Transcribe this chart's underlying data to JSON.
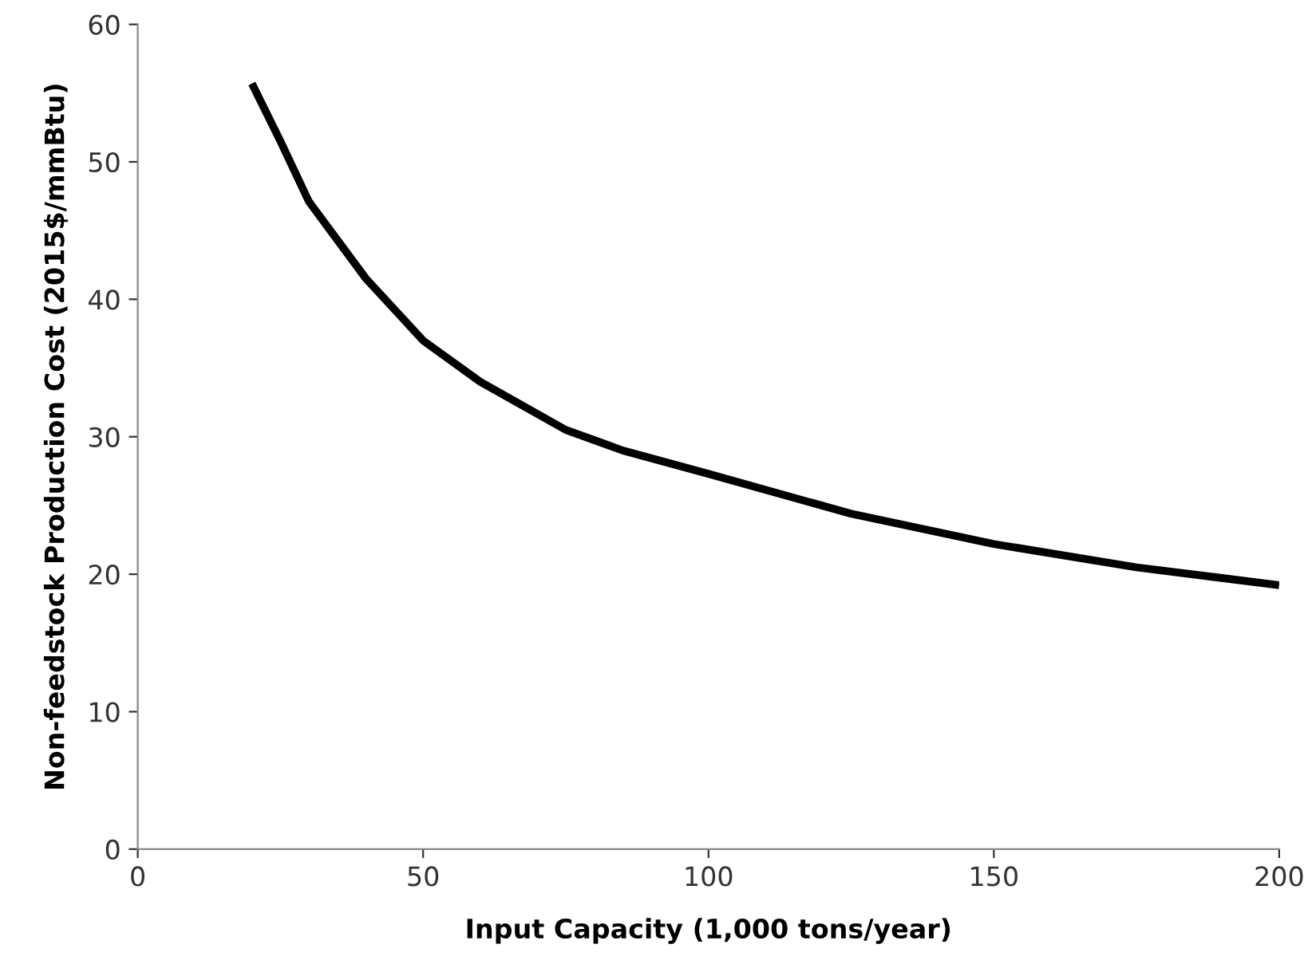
{
  "chart_data": {
    "type": "line",
    "xlabel": "Input Capacity (1,000 tons/year)",
    "ylabel": "Non-feedstock Production Cost (2015$/mmBtu)",
    "x": [
      20,
      25,
      30,
      40,
      50,
      60,
      75,
      85,
      100,
      125,
      150,
      175,
      200
    ],
    "series": [
      {
        "color": "#000000",
        "values": [
          55.7,
          51.5,
          47.1,
          41.5,
          37,
          34,
          30.5,
          29,
          27.3,
          24.4,
          22.2,
          20.5,
          19.2
        ]
      }
    ],
    "xlim": [
      0,
      200
    ],
    "xticks": [
      0,
      50,
      100,
      150,
      200
    ],
    "ylim": [
      0,
      60
    ],
    "yticks": [
      0,
      10,
      20,
      30,
      40,
      50,
      60
    ],
    "grid": false,
    "legend": false,
    "marker": "none",
    "line_style": "solid"
  }
}
